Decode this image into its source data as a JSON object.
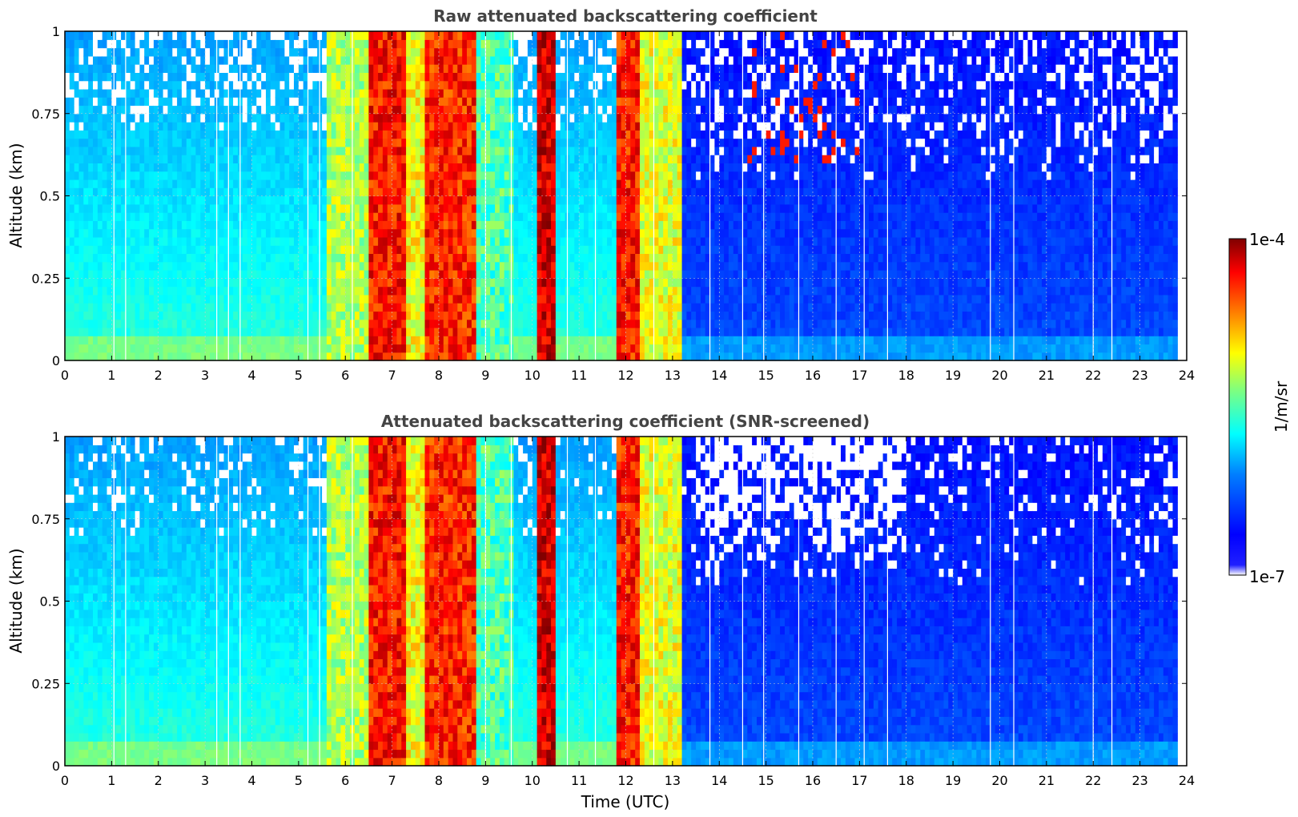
{
  "colormap": [
    "#00007f",
    "#0000ff",
    "#007fff",
    "#00ffff",
    "#7fff7f",
    "#ffff00",
    "#ff7f00",
    "#ff0000",
    "#7f0000"
  ],
  "chart_data": [
    {
      "type": "heatmap",
      "title": "Raw attenuated backscattering coefficient",
      "xlabel": "",
      "ylabel": "Altitude (km)",
      "xlim": [
        0,
        24
      ],
      "ylim": [
        0,
        1
      ],
      "xticks": [
        "0",
        "1",
        "2",
        "3",
        "4",
        "5",
        "6",
        "7",
        "8",
        "9",
        "10",
        "11",
        "12",
        "13",
        "14",
        "15",
        "16",
        "17",
        "18",
        "19",
        "20",
        "21",
        "22",
        "23",
        "24"
      ],
      "yticks": [
        "0",
        "0.25",
        "0.5",
        "0.75",
        "1"
      ],
      "grid": true,
      "data_end_time": 23.8,
      "cloud_bands": [
        {
          "start": 5.6,
          "end": 6.5,
          "level": 0.55
        },
        {
          "start": 6.5,
          "end": 7.3,
          "level": 0.86
        },
        {
          "start": 7.3,
          "end": 7.7,
          "level": 0.62
        },
        {
          "start": 7.7,
          "end": 8.8,
          "level": 0.84
        },
        {
          "start": 8.8,
          "end": 9.6,
          "level": 0.45
        },
        {
          "start": 10.1,
          "end": 10.5,
          "level": 0.92
        },
        {
          "start": 11.8,
          "end": 12.3,
          "level": 0.85
        },
        {
          "start": 12.3,
          "end": 13.2,
          "level": 0.6
        }
      ],
      "screened": false
    },
    {
      "type": "heatmap",
      "title": "Attenuated backscattering coefficient (SNR-screened)",
      "xlabel": "Time (UTC)",
      "ylabel": "Altitude (km)",
      "xlim": [
        0,
        24
      ],
      "ylim": [
        0,
        1
      ],
      "xticks": [
        "0",
        "1",
        "2",
        "3",
        "4",
        "5",
        "6",
        "7",
        "8",
        "9",
        "10",
        "11",
        "12",
        "13",
        "14",
        "15",
        "16",
        "17",
        "18",
        "19",
        "20",
        "21",
        "22",
        "23",
        "24"
      ],
      "yticks": [
        "0",
        "0.25",
        "0.5",
        "0.75",
        "1"
      ],
      "grid": true,
      "data_end_time": 23.8,
      "cloud_bands": [
        {
          "start": 5.6,
          "end": 6.5,
          "level": 0.55
        },
        {
          "start": 6.5,
          "end": 7.3,
          "level": 0.86
        },
        {
          "start": 7.3,
          "end": 7.7,
          "level": 0.62
        },
        {
          "start": 7.7,
          "end": 8.8,
          "level": 0.84
        },
        {
          "start": 8.8,
          "end": 9.6,
          "level": 0.45
        },
        {
          "start": 10.1,
          "end": 10.5,
          "level": 0.92
        },
        {
          "start": 11.8,
          "end": 12.3,
          "level": 0.85
        },
        {
          "start": 12.3,
          "end": 13.2,
          "level": 0.6
        }
      ],
      "screened": true
    }
  ],
  "colorbar": {
    "label": "1/m/sr",
    "max_label": "1e-4",
    "min_label": "1e-7",
    "scale": "log"
  }
}
